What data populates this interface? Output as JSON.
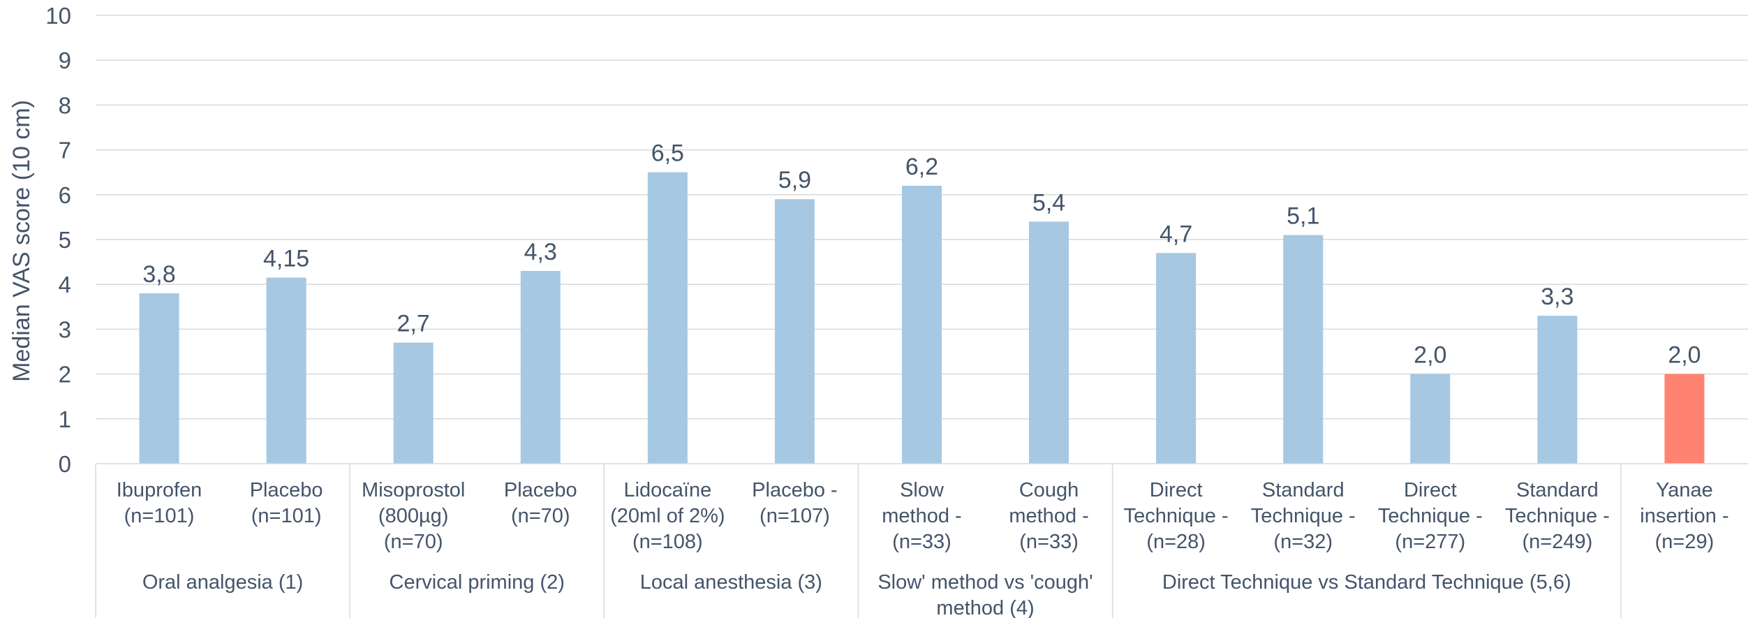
{
  "chart_data": {
    "type": "bar",
    "ylabel": "Median VAS score (10 cm)",
    "ylim": [
      0,
      10
    ],
    "y_ticks": [
      "0",
      "1",
      "2",
      "3",
      "4",
      "5",
      "6",
      "7",
      "8",
      "9",
      "10"
    ],
    "grid": true,
    "colors": {
      "default_bar": "#A6C8E2",
      "highlight_bar": "#FF8370",
      "gridline": "#D9D9D9",
      "text": "#44546A"
    },
    "categories": [
      [
        "Ibuprofen",
        "(n=101)"
      ],
      [
        "Placebo",
        "(n=101)"
      ],
      [
        "Misoprostol",
        "(800µg)",
        "(n=70)"
      ],
      [
        "Placebo",
        "(n=70)"
      ],
      [
        "Lidocaïne",
        "(20ml of 2%)",
        "(n=108)"
      ],
      [
        "Placebo -",
        "(n=107)"
      ],
      [
        "Slow",
        "method  -",
        "(n=33)"
      ],
      [
        "Cough",
        "method -",
        "(n=33)"
      ],
      [
        "Direct",
        "Technique -",
        "(n=28)"
      ],
      [
        "Standard",
        "Technique -",
        "(n=32)"
      ],
      [
        "Direct",
        "Technique -",
        "(n=277)"
      ],
      [
        "Standard",
        "Technique -",
        "(n=249)"
      ],
      [
        "Yanae",
        "insertion -",
        "(n=29)"
      ]
    ],
    "values": [
      3.8,
      4.15,
      2.7,
      4.3,
      6.5,
      5.9,
      6.2,
      5.4,
      4.7,
      5.1,
      2.0,
      3.3,
      2.0
    ],
    "data_labels": [
      "3,8",
      "4,15",
      "2,7",
      "4,3",
      "6,5",
      "5,9",
      "6,2",
      "5,4",
      "4,7",
      "5,1",
      "2,0",
      "3,3",
      "2,0"
    ],
    "highlight_index": 12,
    "groups": [
      {
        "label": [
          "Oral analgesia (1)"
        ],
        "start": 0,
        "count": 2
      },
      {
        "label": [
          "Cervical priming (2)"
        ],
        "start": 2,
        "count": 2
      },
      {
        "label": [
          "Local anesthesia (3)"
        ],
        "start": 4,
        "count": 2
      },
      {
        "label": [
          "Slow' method  vs  'cough'",
          "method (4)"
        ],
        "start": 6,
        "count": 2
      },
      {
        "label": [
          "Direct Technique  vs Standard Technique (5,6)"
        ],
        "start": 8,
        "count": 4
      },
      {
        "label": [
          ""
        ],
        "start": 12,
        "count": 1
      }
    ]
  }
}
